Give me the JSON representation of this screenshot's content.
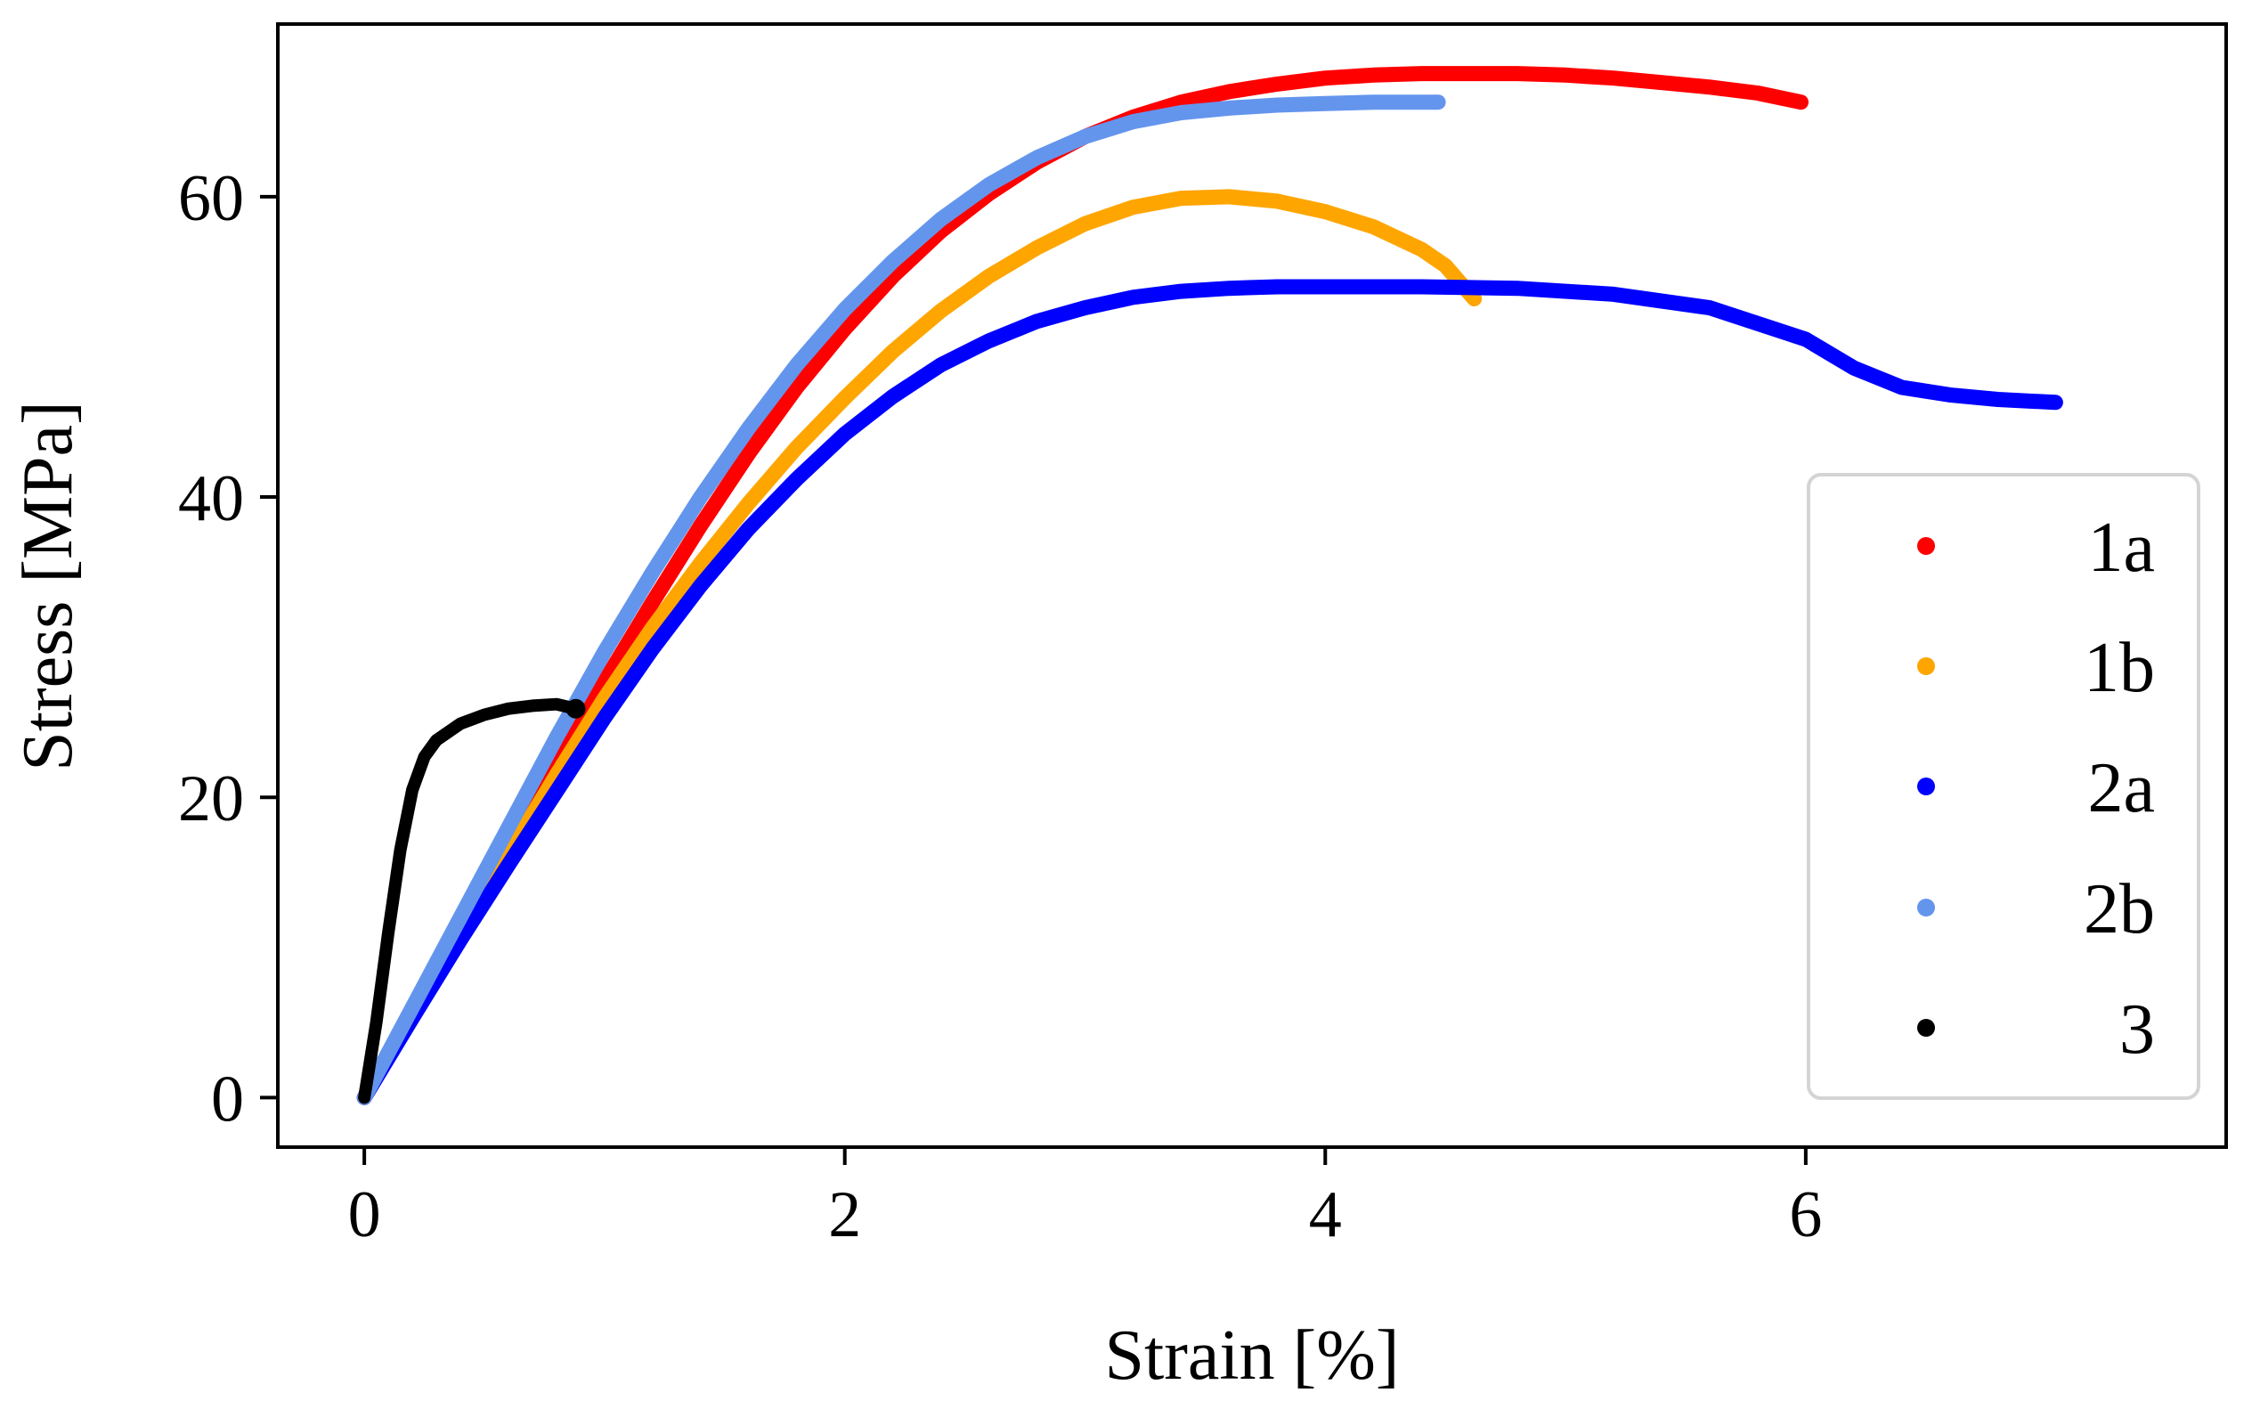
{
  "chart_data": {
    "type": "scatter",
    "title": "",
    "xlabel": "Strain [%]",
    "ylabel": "Stress [MPa]",
    "xlim": [
      -0.36,
      7.75
    ],
    "ylim": [
      -3.3,
      71.5
    ],
    "xticks": [
      0,
      2,
      4,
      6
    ],
    "yticks": [
      0,
      20,
      40,
      60
    ],
    "xtick_labels": [
      "0",
      "2",
      "4",
      "6"
    ],
    "ytick_labels": [
      "0",
      "20",
      "40",
      "60"
    ],
    "grid": false,
    "legend_position": "right",
    "series": [
      {
        "name": "1a",
        "color": "#ff0000",
        "x": [
          0.0,
          0.2,
          0.4,
          0.6,
          0.8,
          1.0,
          1.2,
          1.4,
          1.6,
          1.8,
          2.0,
          2.2,
          2.4,
          2.6,
          2.8,
          3.0,
          3.2,
          3.4,
          3.6,
          3.8,
          4.0,
          4.2,
          4.4,
          4.6,
          4.8,
          5.0,
          5.2,
          5.4,
          5.6,
          5.8,
          5.98
        ],
        "y": [
          0.0,
          5.6,
          11.2,
          16.7,
          22.2,
          27.7,
          33.0,
          38.1,
          42.9,
          47.3,
          51.2,
          54.7,
          57.7,
          60.2,
          62.3,
          64.0,
          65.3,
          66.3,
          67.0,
          67.5,
          67.9,
          68.1,
          68.2,
          68.2,
          68.2,
          68.1,
          67.9,
          67.6,
          67.3,
          66.9,
          66.3
        ]
      },
      {
        "name": "1b",
        "color": "#ffa500",
        "x": [
          0.0,
          0.2,
          0.4,
          0.6,
          0.8,
          1.0,
          1.2,
          1.4,
          1.6,
          1.8,
          2.0,
          2.2,
          2.4,
          2.6,
          2.8,
          3.0,
          3.2,
          3.4,
          3.6,
          3.8,
          4.0,
          4.2,
          4.4,
          4.5,
          4.62
        ],
        "y": [
          0.0,
          5.4,
          10.8,
          16.2,
          21.5,
          26.6,
          31.3,
          35.6,
          39.6,
          43.3,
          46.6,
          49.7,
          52.4,
          54.7,
          56.6,
          58.2,
          59.3,
          59.9,
          60.0,
          59.7,
          59.0,
          58.0,
          56.5,
          55.4,
          53.2
        ]
      },
      {
        "name": "2a",
        "color": "#0000ff",
        "x": [
          0.0,
          0.2,
          0.4,
          0.6,
          0.8,
          1.0,
          1.2,
          1.4,
          1.6,
          1.8,
          2.0,
          2.2,
          2.4,
          2.6,
          2.8,
          3.0,
          3.2,
          3.4,
          3.6,
          3.8,
          4.0,
          4.4,
          4.8,
          5.2,
          5.6,
          6.0,
          6.2,
          6.4,
          6.6,
          6.8,
          7.04
        ],
        "y": [
          0.0,
          5.3,
          10.5,
          15.5,
          20.4,
          25.3,
          29.9,
          34.1,
          37.9,
          41.2,
          44.2,
          46.7,
          48.8,
          50.4,
          51.7,
          52.6,
          53.3,
          53.7,
          53.9,
          54.0,
          54.0,
          54.0,
          53.9,
          53.5,
          52.6,
          50.5,
          48.6,
          47.3,
          46.8,
          46.5,
          46.3
        ]
      },
      {
        "name": "2b",
        "color": "#6495ed",
        "x": [
          0.0,
          0.2,
          0.4,
          0.6,
          0.8,
          1.0,
          1.2,
          1.4,
          1.6,
          1.8,
          2.0,
          2.2,
          2.4,
          2.6,
          2.8,
          3.0,
          3.2,
          3.4,
          3.6,
          3.8,
          4.0,
          4.2,
          4.47
        ],
        "y": [
          0.0,
          6.0,
          12.0,
          18.0,
          24.0,
          29.7,
          35.0,
          40.0,
          44.6,
          48.8,
          52.5,
          55.7,
          58.5,
          60.8,
          62.6,
          64.0,
          65.0,
          65.6,
          65.9,
          66.1,
          66.2,
          66.3,
          66.3
        ]
      },
      {
        "name": "3",
        "color": "#000000",
        "x": [
          0.0,
          0.05,
          0.1,
          0.15,
          0.2,
          0.25,
          0.3,
          0.4,
          0.5,
          0.6,
          0.7,
          0.8,
          0.88
        ],
        "y": [
          0.0,
          5.0,
          11.0,
          16.5,
          20.5,
          22.7,
          23.8,
          24.9,
          25.5,
          25.9,
          26.1,
          26.2,
          25.9
        ]
      }
    ]
  }
}
